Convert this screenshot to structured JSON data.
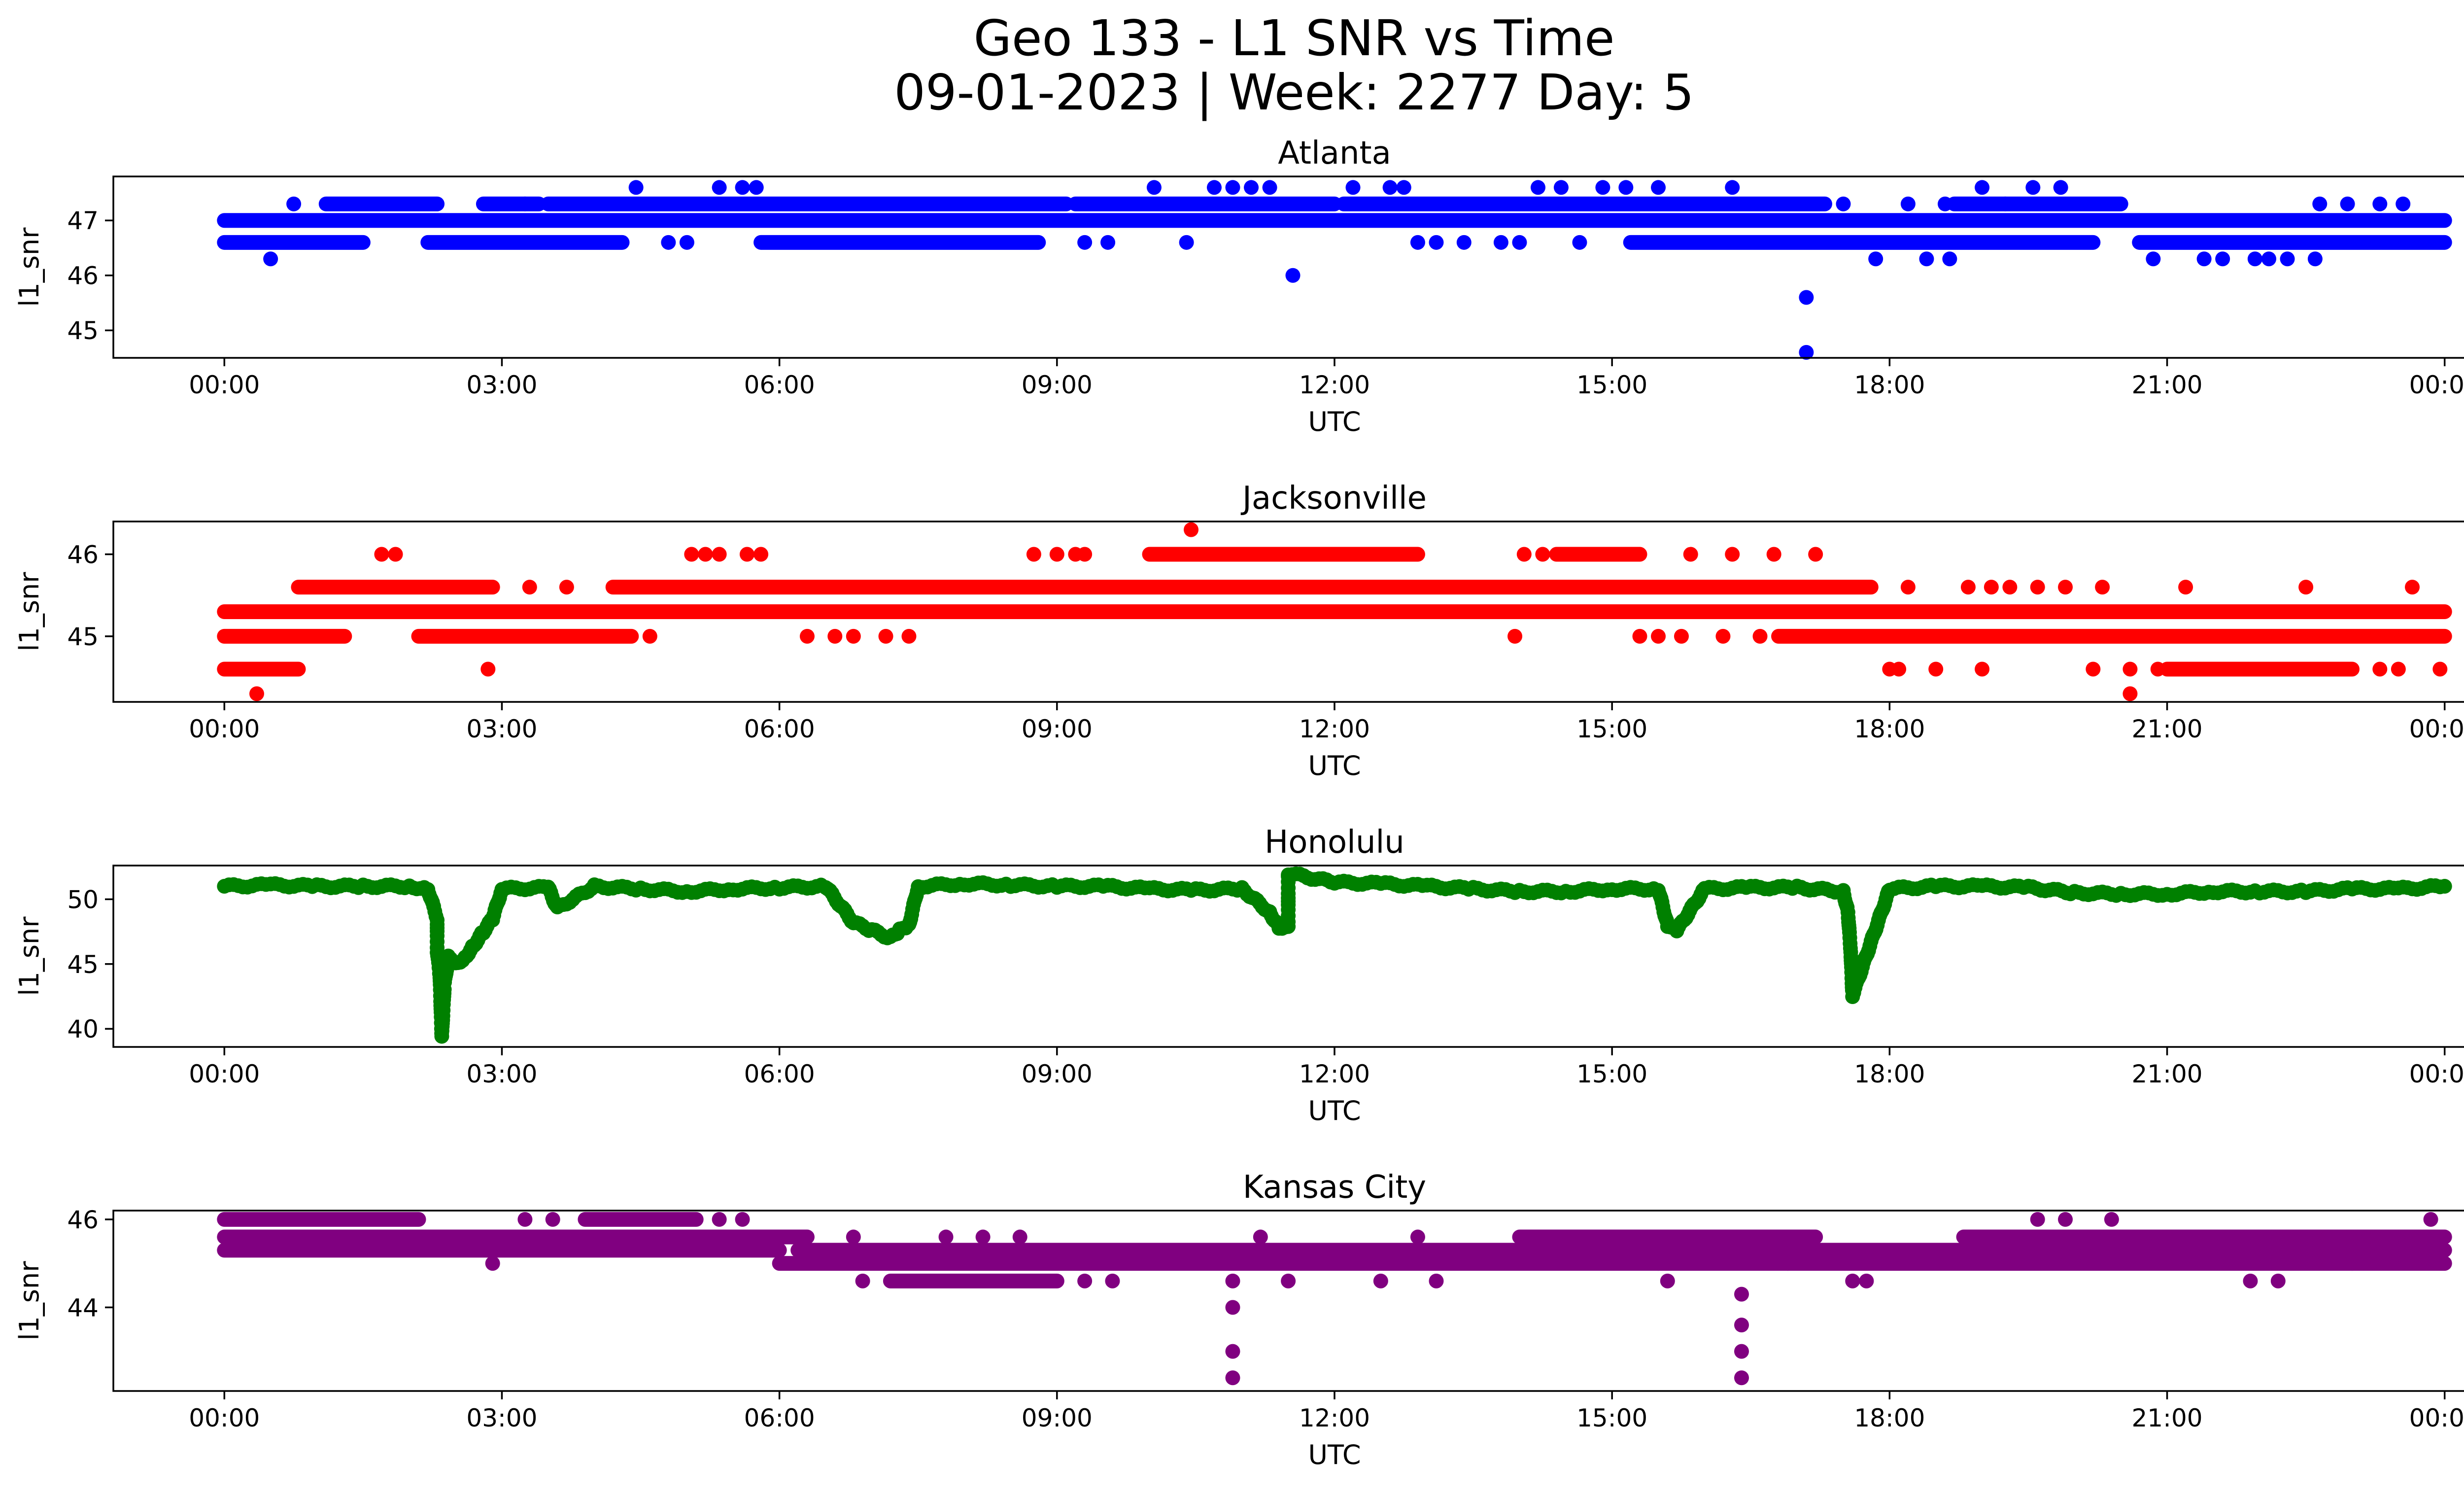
{
  "figure": {
    "title_line1": "Geo 133 - L1 SNR vs Time",
    "title_line2": "09-01-2023 | Week: 2277 Day: 5"
  },
  "chart_data": [
    {
      "type": "scatter",
      "title": "Atlanta",
      "xlabel": "UTC",
      "ylabel": "l1_snr",
      "color": "#0000ff",
      "x_unit": "hours UTC",
      "xlim": [
        "00:00",
        "00:00 (+1 day)"
      ],
      "ylim": [
        44.5,
        47.8
      ],
      "xticks": [
        "00:00",
        "03:00",
        "06:00",
        "09:00",
        "12:00",
        "15:00",
        "18:00",
        "21:00",
        "00:00"
      ],
      "yticks": [
        45,
        46,
        47
      ],
      "levels": [
        46.6,
        47.0,
        47.3
      ],
      "segments": [
        {
          "y": 47.0,
          "from": 0.0,
          "to": 24.0
        },
        {
          "y": 47.3,
          "from": 1.1,
          "to": 2.3
        },
        {
          "y": 47.3,
          "from": 2.8,
          "to": 3.4
        },
        {
          "y": 47.3,
          "from": 3.5,
          "to": 9.1
        },
        {
          "y": 47.3,
          "from": 9.2,
          "to": 12.0
        },
        {
          "y": 47.3,
          "from": 12.1,
          "to": 17.3
        },
        {
          "y": 47.3,
          "from": 18.7,
          "to": 20.5
        },
        {
          "y": 46.6,
          "from": 0.0,
          "to": 1.5
        },
        {
          "y": 46.6,
          "from": 2.2,
          "to": 4.3
        },
        {
          "y": 46.6,
          "from": 5.8,
          "to": 8.8
        },
        {
          "y": 46.6,
          "from": 15.2,
          "to": 20.2
        },
        {
          "y": 46.6,
          "from": 20.7,
          "to": 24.0
        }
      ],
      "points": [
        [
          0.5,
          46.3
        ],
        [
          0.75,
          47.3
        ],
        [
          3.25,
          47.3
        ],
        [
          4.45,
          47.6
        ],
        [
          4.8,
          46.6
        ],
        [
          5.0,
          46.6
        ],
        [
          5.35,
          47.6
        ],
        [
          5.6,
          47.6
        ],
        [
          5.75,
          47.6
        ],
        [
          9.3,
          46.6
        ],
        [
          9.55,
          46.6
        ],
        [
          10.05,
          47.6
        ],
        [
          10.4,
          46.6
        ],
        [
          10.7,
          47.6
        ],
        [
          10.9,
          47.6
        ],
        [
          11.1,
          47.6
        ],
        [
          11.3,
          47.6
        ],
        [
          11.55,
          46.0
        ],
        [
          12.2,
          47.6
        ],
        [
          12.6,
          47.6
        ],
        [
          12.75,
          47.6
        ],
        [
          12.9,
          46.6
        ],
        [
          13.1,
          46.6
        ],
        [
          13.4,
          46.6
        ],
        [
          13.8,
          46.6
        ],
        [
          14.0,
          46.6
        ],
        [
          14.2,
          47.6
        ],
        [
          14.45,
          47.6
        ],
        [
          14.65,
          46.6
        ],
        [
          14.9,
          47.6
        ],
        [
          15.15,
          47.6
        ],
        [
          15.5,
          47.6
        ],
        [
          16.3,
          47.6
        ],
        [
          17.1,
          45.6
        ],
        [
          17.1,
          44.6
        ],
        [
          17.5,
          47.3
        ],
        [
          17.85,
          46.3
        ],
        [
          18.2,
          47.3
        ],
        [
          18.4,
          46.3
        ],
        [
          18.6,
          47.3
        ],
        [
          18.65,
          46.3
        ],
        [
          19.0,
          47.6
        ],
        [
          19.25,
          47.3
        ],
        [
          19.55,
          47.6
        ],
        [
          19.85,
          47.6
        ],
        [
          20.85,
          46.3
        ],
        [
          21.4,
          46.3
        ],
        [
          21.6,
          46.3
        ],
        [
          21.95,
          46.3
        ],
        [
          22.1,
          46.3
        ],
        [
          22.3,
          46.3
        ],
        [
          22.6,
          46.3
        ],
        [
          22.65,
          47.3
        ],
        [
          22.95,
          47.3
        ],
        [
          23.3,
          47.3
        ],
        [
          23.55,
          47.3
        ]
      ]
    },
    {
      "type": "scatter",
      "title": "Jacksonville",
      "xlabel": "UTC",
      "ylabel": "l1_snr",
      "color": "#ff0000",
      "x_unit": "hours UTC",
      "xlim": [
        "00:00",
        "00:00 (+1 day)"
      ],
      "ylim": [
        44.2,
        46.4
      ],
      "xticks": [
        "00:00",
        "03:00",
        "06:00",
        "09:00",
        "12:00",
        "15:00",
        "18:00",
        "21:00",
        "00:00"
      ],
      "yticks": [
        45,
        46
      ],
      "levels": [
        44.6,
        45.0,
        45.3,
        45.6,
        46.0
      ],
      "segments": [
        {
          "y": 45.3,
          "from": 0.0,
          "to": 24.0
        },
        {
          "y": 45.0,
          "from": 0.0,
          "to": 1.3
        },
        {
          "y": 45.0,
          "from": 2.1,
          "to": 4.4
        },
        {
          "y": 45.0,
          "from": 16.8,
          "to": 24.0
        },
        {
          "y": 45.6,
          "from": 0.8,
          "to": 2.9
        },
        {
          "y": 45.6,
          "from": 4.2,
          "to": 17.8
        },
        {
          "y": 46.0,
          "from": 10.0,
          "to": 12.9
        },
        {
          "y": 46.0,
          "from": 14.4,
          "to": 15.3
        },
        {
          "y": 44.6,
          "from": 0.0,
          "to": 0.8
        },
        {
          "y": 44.6,
          "from": 21.0,
          "to": 23.0
        }
      ],
      "points": [
        [
          0.35,
          44.3
        ],
        [
          1.7,
          46.0
        ],
        [
          1.85,
          46.0
        ],
        [
          2.85,
          44.6
        ],
        [
          3.3,
          45.6
        ],
        [
          3.7,
          45.6
        ],
        [
          4.6,
          45.0
        ],
        [
          5.05,
          46.0
        ],
        [
          5.2,
          46.0
        ],
        [
          5.35,
          46.0
        ],
        [
          5.65,
          46.0
        ],
        [
          5.8,
          46.0
        ],
        [
          6.3,
          45.0
        ],
        [
          6.6,
          45.0
        ],
        [
          6.8,
          45.0
        ],
        [
          7.15,
          45.0
        ],
        [
          7.4,
          45.0
        ],
        [
          8.75,
          46.0
        ],
        [
          9.0,
          46.0
        ],
        [
          9.2,
          46.0
        ],
        [
          9.3,
          46.0
        ],
        [
          10.45,
          46.3
        ],
        [
          10.8,
          45.3
        ],
        [
          11.3,
          45.3
        ],
        [
          11.6,
          45.3
        ],
        [
          13.95,
          45.0
        ],
        [
          14.05,
          46.0
        ],
        [
          14.25,
          46.0
        ],
        [
          15.3,
          45.0
        ],
        [
          15.5,
          45.0
        ],
        [
          15.75,
          45.0
        ],
        [
          15.85,
          46.0
        ],
        [
          16.2,
          45.0
        ],
        [
          16.3,
          46.0
        ],
        [
          16.6,
          45.0
        ],
        [
          16.75,
          46.0
        ],
        [
          17.2,
          46.0
        ],
        [
          18.0,
          44.6
        ],
        [
          18.1,
          44.6
        ],
        [
          18.2,
          45.6
        ],
        [
          18.5,
          44.6
        ],
        [
          18.85,
          45.6
        ],
        [
          19.0,
          44.6
        ],
        [
          19.1,
          45.6
        ],
        [
          19.3,
          45.6
        ],
        [
          19.6,
          45.6
        ],
        [
          19.9,
          45.6
        ],
        [
          20.2,
          44.6
        ],
        [
          20.3,
          45.6
        ],
        [
          20.6,
          44.6
        ],
        [
          20.6,
          44.3
        ],
        [
          20.9,
          44.6
        ],
        [
          21.2,
          44.6
        ],
        [
          21.2,
          45.6
        ],
        [
          22.5,
          45.6
        ],
        [
          23.3,
          44.6
        ],
        [
          23.5,
          44.6
        ],
        [
          23.65,
          45.6
        ],
        [
          23.95,
          44.6
        ]
      ]
    },
    {
      "type": "scatter",
      "title": "Honolulu",
      "xlabel": "UTC",
      "ylabel": "l1_snr",
      "color": "#008000",
      "x_unit": "hours UTC",
      "xlim": [
        "00:00",
        "00:00 (+1 day)"
      ],
      "ylim": [
        38.6,
        52.6
      ],
      "xticks": [
        "00:00",
        "03:00",
        "06:00",
        "09:00",
        "12:00",
        "15:00",
        "18:00",
        "21:00",
        "00:00"
      ],
      "yticks": [
        40,
        45,
        50
      ],
      "series_points": [
        [
          0.0,
          51.0
        ],
        [
          0.5,
          51.1
        ],
        [
          1.0,
          51.0
        ],
        [
          1.5,
          51.0
        ],
        [
          2.0,
          51.0
        ],
        [
          2.2,
          50.8
        ],
        [
          2.3,
          48.5
        ],
        [
          2.3,
          46.0
        ],
        [
          2.33,
          44.0
        ],
        [
          2.35,
          39.4
        ],
        [
          2.38,
          43.5
        ],
        [
          2.42,
          45.5
        ],
        [
          2.5,
          45.0
        ],
        [
          2.6,
          45.5
        ],
        [
          2.7,
          46.5
        ],
        [
          2.8,
          47.5
        ],
        [
          2.9,
          48.5
        ],
        [
          3.0,
          50.8
        ],
        [
          3.5,
          50.9
        ],
        [
          3.6,
          49.3
        ],
        [
          4.0,
          51.0
        ],
        [
          4.5,
          50.8
        ],
        [
          5.0,
          50.6
        ],
        [
          5.5,
          50.8
        ],
        [
          6.0,
          50.9
        ],
        [
          6.5,
          51.0
        ],
        [
          6.8,
          48.2
        ],
        [
          7.0,
          47.6
        ],
        [
          7.2,
          47.0
        ],
        [
          7.3,
          47.6
        ],
        [
          7.4,
          48.0
        ],
        [
          7.5,
          51.0
        ],
        [
          8.0,
          51.2
        ],
        [
          8.5,
          51.1
        ],
        [
          9.0,
          51.0
        ],
        [
          9.5,
          51.0
        ],
        [
          10.0,
          50.8
        ],
        [
          10.5,
          50.7
        ],
        [
          11.0,
          50.8
        ],
        [
          11.3,
          49.0
        ],
        [
          11.4,
          47.8
        ],
        [
          11.5,
          48.0
        ],
        [
          11.5,
          52.0
        ],
        [
          12.0,
          51.3
        ],
        [
          12.5,
          51.2
        ],
        [
          13.0,
          51.0
        ],
        [
          13.5,
          50.8
        ],
        [
          14.0,
          50.6
        ],
        [
          14.5,
          50.6
        ],
        [
          15.0,
          50.8
        ],
        [
          15.5,
          50.8
        ],
        [
          15.6,
          48.0
        ],
        [
          15.7,
          47.6
        ],
        [
          16.0,
          50.8
        ],
        [
          16.5,
          50.9
        ],
        [
          17.0,
          50.9
        ],
        [
          17.5,
          50.6
        ],
        [
          17.55,
          49.0
        ],
        [
          17.58,
          46.0
        ],
        [
          17.6,
          42.6
        ],
        [
          18.0,
          50.8
        ],
        [
          18.5,
          51.0
        ],
        [
          19.0,
          51.0
        ],
        [
          19.5,
          50.9
        ],
        [
          20.0,
          50.5
        ],
        [
          20.5,
          50.4
        ],
        [
          21.0,
          50.4
        ],
        [
          21.5,
          50.6
        ],
        [
          22.0,
          50.6
        ],
        [
          22.5,
          50.6
        ],
        [
          23.0,
          50.8
        ],
        [
          23.5,
          50.8
        ],
        [
          24.0,
          51.0
        ]
      ]
    },
    {
      "type": "scatter",
      "title": "Kansas City",
      "xlabel": "UTC",
      "ylabel": "l1_snr",
      "color": "#800080",
      "x_unit": "hours UTC",
      "xlim": [
        "00:00",
        "00:00 (+1 day)"
      ],
      "ylim": [
        42.1,
        46.2
      ],
      "xticks": [
        "00:00",
        "03:00",
        "06:00",
        "09:00",
        "12:00",
        "15:00",
        "18:00",
        "21:00",
        "00:00"
      ],
      "yticks": [
        44,
        46
      ],
      "levels": [
        44.6,
        45.0,
        45.3,
        45.6,
        46.0
      ],
      "segments": [
        {
          "y": 45.3,
          "from": 0.0,
          "to": 6.0
        },
        {
          "y": 45.6,
          "from": 0.0,
          "to": 6.3
        },
        {
          "y": 46.0,
          "from": 0.0,
          "to": 2.1
        },
        {
          "y": 46.0,
          "from": 3.9,
          "to": 5.1
        },
        {
          "y": 45.0,
          "from": 6.0,
          "to": 24.0
        },
        {
          "y": 45.3,
          "from": 6.2,
          "to": 24.0
        },
        {
          "y": 45.6,
          "from": 14.0,
          "to": 17.2
        },
        {
          "y": 45.6,
          "from": 18.8,
          "to": 24.0
        },
        {
          "y": 44.6,
          "from": 7.2,
          "to": 9.0
        }
      ],
      "points": [
        [
          2.9,
          45.0
        ],
        [
          3.25,
          46.0
        ],
        [
          3.55,
          46.0
        ],
        [
          5.35,
          46.0
        ],
        [
          5.6,
          46.0
        ],
        [
          6.8,
          45.6
        ],
        [
          6.9,
          44.6
        ],
        [
          7.8,
          45.6
        ],
        [
          8.2,
          45.6
        ],
        [
          8.6,
          45.6
        ],
        [
          9.3,
          44.6
        ],
        [
          9.6,
          44.6
        ],
        [
          10.9,
          44.6
        ],
        [
          10.9,
          44.0
        ],
        [
          10.9,
          43.0
        ],
        [
          10.9,
          42.4
        ],
        [
          11.2,
          45.6
        ],
        [
          11.5,
          44.6
        ],
        [
          12.5,
          44.6
        ],
        [
          12.9,
          45.6
        ],
        [
          13.1,
          44.6
        ],
        [
          15.6,
          44.6
        ],
        [
          15.5,
          45.0
        ],
        [
          16.4,
          44.3
        ],
        [
          16.4,
          43.6
        ],
        [
          16.4,
          43.0
        ],
        [
          16.4,
          42.4
        ],
        [
          16.9,
          45.0
        ],
        [
          17.6,
          44.6
        ],
        [
          17.75,
          44.6
        ],
        [
          19.6,
          46.0
        ],
        [
          19.9,
          46.0
        ],
        [
          20.4,
          46.0
        ],
        [
          21.9,
          44.6
        ],
        [
          22.2,
          44.6
        ],
        [
          23.0,
          45.0
        ],
        [
          23.85,
          46.0
        ]
      ]
    }
  ]
}
